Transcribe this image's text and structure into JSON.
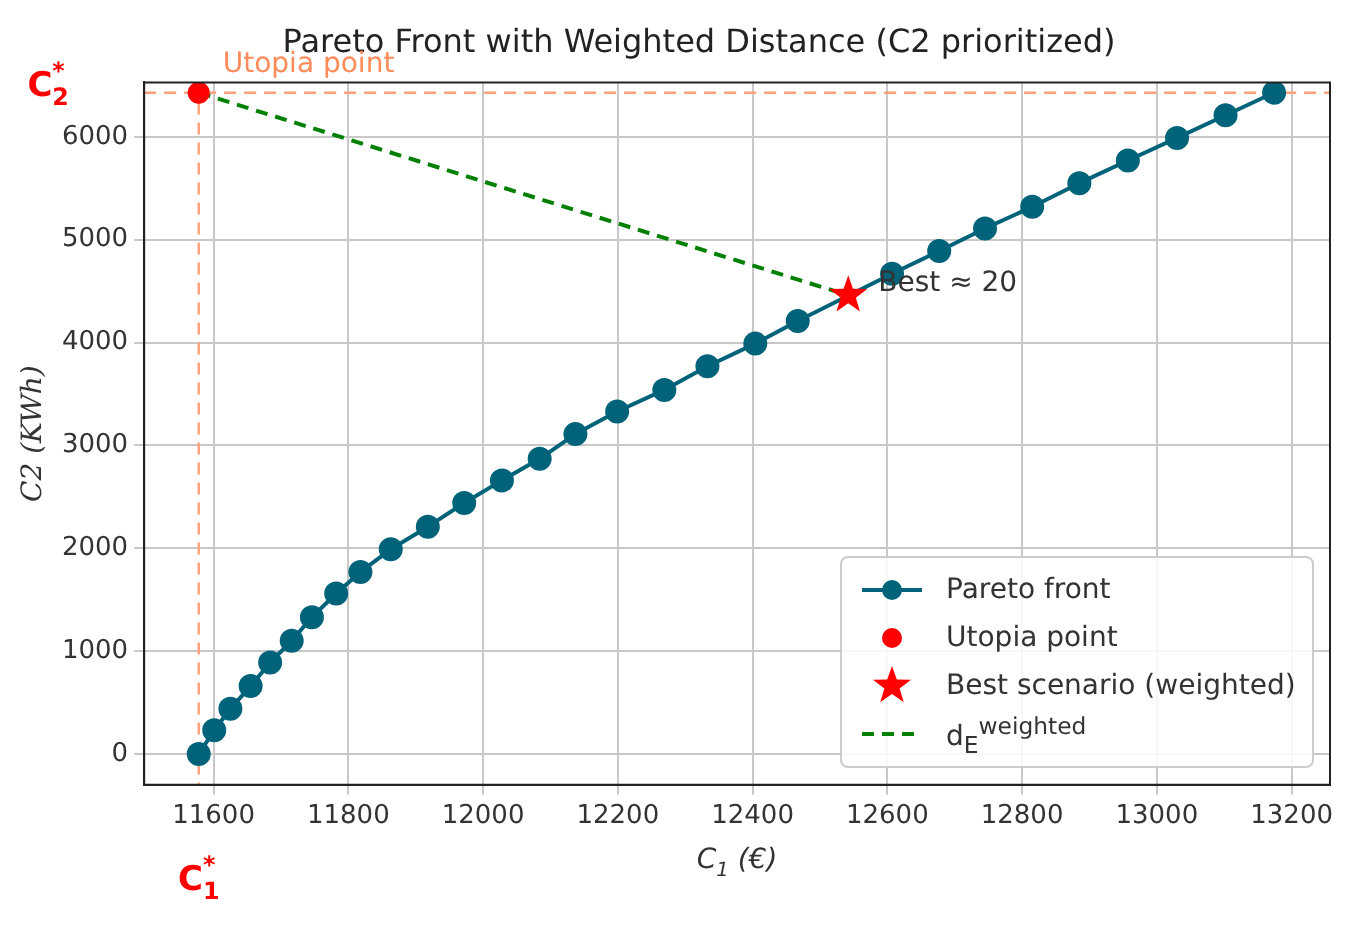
{
  "chart_data": {
    "type": "line",
    "title": "Pareto Front with Weighted Distance (C2 prioritized)",
    "xlabel": "C$_{1}$ (€)",
    "ylabel": "C2 (KWh)",
    "xlim": [
      11497,
      13257
    ],
    "ylim": [
      -300,
      6530
    ],
    "xticks": [
      11600,
      11800,
      12000,
      12200,
      12400,
      12600,
      12800,
      13000,
      13200
    ],
    "yticks": [
      0,
      1000,
      2000,
      3000,
      4000,
      5000,
      6000
    ],
    "series": [
      {
        "name": "Pareto front",
        "color": "#00637a",
        "marker": "circle",
        "line_style": "solid",
        "x": [
          11578,
          11601,
          11625,
          11655,
          11684,
          11716,
          11746,
          11782,
          11818,
          11863,
          11918,
          11972,
          12028,
          12084,
          12137,
          12199,
          12269,
          12333,
          12404,
          12467,
          12542,
          12607,
          12677,
          12745,
          12815,
          12885,
          12957,
          13030,
          13102,
          13174
        ],
        "values": [
          0,
          230,
          440,
          660,
          890,
          1100,
          1330,
          1560,
          1770,
          1990,
          2210,
          2440,
          2660,
          2870,
          3110,
          3330,
          3540,
          3770,
          3990,
          4210,
          null,
          4670,
          4890,
          5110,
          5320,
          5550,
          5770,
          5990,
          6210,
          6430
        ]
      },
      {
        "name": "Utopia point",
        "type": "scatter",
        "color": "#ff0000",
        "marker": "circle",
        "x": [
          11578
        ],
        "values": [
          6430
        ]
      },
      {
        "name": "Best scenario (weighted)",
        "type": "scatter",
        "color": "#ff0000",
        "marker": "star",
        "x": [
          12542
        ],
        "values": [
          4460
        ]
      },
      {
        "name": "d$_{E}$$^{weighted}$",
        "type": "line",
        "color": "#008000",
        "marker": "none",
        "line_style": "dashed",
        "x": [
          11578,
          12542
        ],
        "values": [
          6430,
          4460
        ]
      }
    ],
    "ref_lines": [
      {
        "axis": "x",
        "value": 11578,
        "label": "C$^{*}$$_{1}$",
        "color": "#ffa07a",
        "line_style": "dashed"
      },
      {
        "axis": "y",
        "value": 6430,
        "label": "C$^{*}$$_{2}$",
        "color": "#ffa07a",
        "line_style": "dashed"
      }
    ],
    "annotations": [
      {
        "text": "Utopia point",
        "x": 11578,
        "y": 6430
      },
      {
        "text": "Best ≈ 20",
        "x": 12542,
        "y": 4460
      }
    ],
    "grid": true,
    "legend": "bottom right"
  }
}
